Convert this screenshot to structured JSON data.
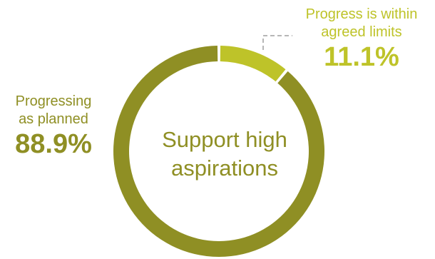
{
  "colors": {
    "primary": "#8F8F24",
    "secondary": "#BEC329",
    "leader": "#9E9E9E"
  },
  "chart_data": {
    "type": "pie",
    "donut": true,
    "center_label": "Support high aspirations",
    "slices": [
      {
        "label_line1": "Progressing",
        "label_line2": "as planned",
        "value": 88.9,
        "value_label": "88.9%",
        "color": "#8F8F24"
      },
      {
        "label_line1": "Progress is within",
        "label_line2": "agreed limits",
        "value": 11.1,
        "value_label": "11.1%",
        "color": "#BEC329"
      }
    ]
  }
}
